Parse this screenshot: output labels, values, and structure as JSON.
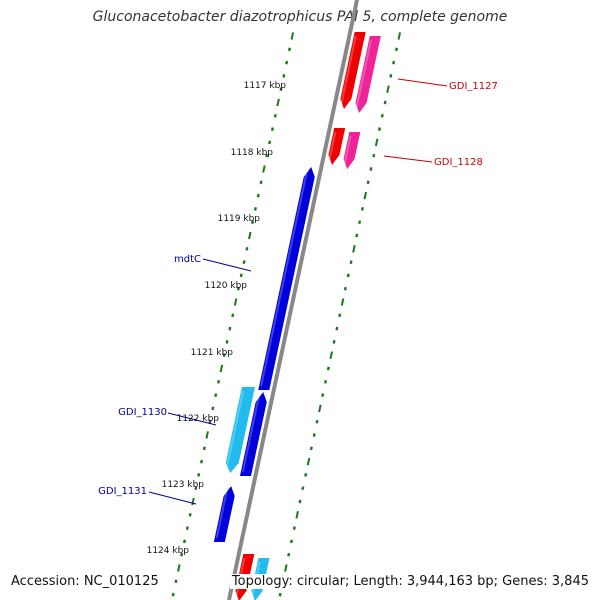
{
  "title": "Gluconacetobacter diazotrophicus PAl 5, complete genome",
  "footer": {
    "accession": "Accession: NC_010125",
    "topology": "Topology: circular; Length: 3,944,163 bp; Genes: 3,845"
  },
  "ticks": [
    {
      "label": "1117 kbp"
    },
    {
      "label": "1118 kbp"
    },
    {
      "label": "1119 kbp"
    },
    {
      "label": "1120 kbp"
    },
    {
      "label": "1121 kbp"
    },
    {
      "label": "1122 kbp"
    },
    {
      "label": "1123 kbp"
    },
    {
      "label": "1124 kbp"
    }
  ],
  "gene_labels": [
    {
      "name": "GDI_1127",
      "color": "#cc0000"
    },
    {
      "name": "GDI_1128",
      "color": "#cc0000"
    },
    {
      "name": "mdtC",
      "color": "#000099"
    },
    {
      "name": "GDI_1130",
      "color": "#000099"
    },
    {
      "name": "GDI_1131",
      "color": "#000099"
    }
  ],
  "colors": {
    "backbone": "#888888",
    "tick": "#1a7a1a",
    "reverse_cds": "#0000dd",
    "reverse_cds_light": "#22bbee",
    "forward_cds": "#ee0000",
    "forward_cds_pink": "#ee2299"
  }
}
